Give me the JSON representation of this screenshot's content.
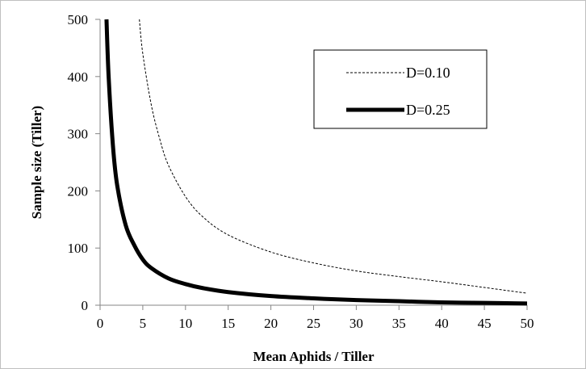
{
  "chart_data": {
    "type": "line",
    "title": "",
    "xlabel": "Mean Aphids / Tiller",
    "ylabel": "Sample size (Tiller)",
    "xlim": [
      0,
      50
    ],
    "ylim": [
      0,
      500
    ],
    "x_ticks": [
      "0",
      "5",
      "10",
      "15",
      "20",
      "25",
      "30",
      "35",
      "40",
      "45",
      "50"
    ],
    "y_ticks": [
      "0",
      "100",
      "200",
      "300",
      "400",
      "500"
    ],
    "grid": false,
    "legend_position": "top-right",
    "series": [
      {
        "name": "D=0.10",
        "style": "dashed-thin",
        "color": "#000000",
        "x": [
          4.6,
          5,
          6,
          7,
          8,
          10,
          12,
          15,
          20,
          25,
          30,
          35,
          40,
          45,
          50
        ],
        "y": [
          500,
          440,
          350,
          290,
          245,
          190,
          155,
          123,
          93,
          74,
          60,
          50,
          41,
          31,
          21
        ]
      },
      {
        "name": "D=0.25",
        "style": "solid-thick",
        "color": "#000000",
        "x": [
          0.75,
          1,
          1.5,
          2,
          3,
          4,
          5,
          6,
          8,
          10,
          12,
          15,
          20,
          25,
          30,
          35,
          40,
          45,
          50
        ],
        "y": [
          500,
          400,
          280,
          210,
          140,
          105,
          80,
          65,
          47,
          37,
          30,
          23,
          16,
          12,
          9,
          7,
          5,
          4,
          3
        ]
      }
    ]
  }
}
